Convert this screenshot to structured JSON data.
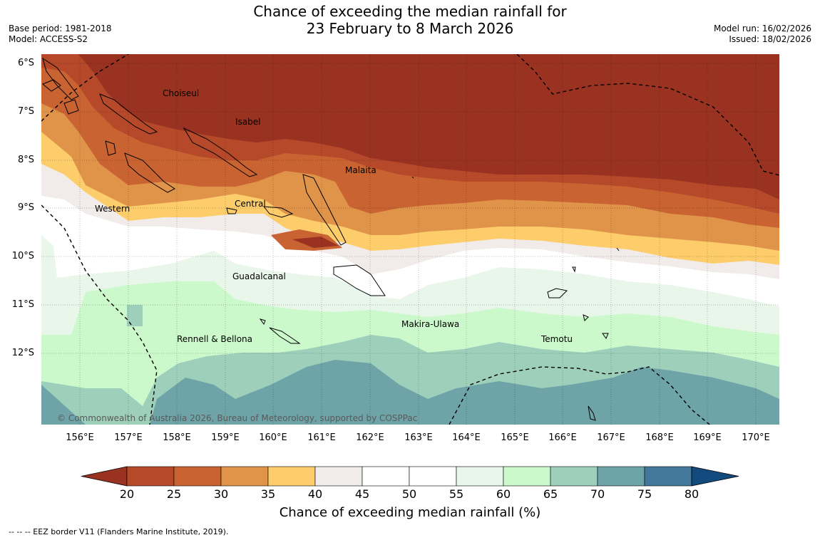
{
  "title": {
    "line1": "Chance of exceeding the median rainfall for",
    "line2": "23 February to 8 March 2026"
  },
  "left_meta": {
    "base_period": "Base period: 1981-2018",
    "model": "Model: ACCESS-S2"
  },
  "right_meta": {
    "model_run": "Model run: 16/02/2026",
    "issued": "Issued: 18/02/2026"
  },
  "map": {
    "lat_labels": [
      "6°S",
      "7°S",
      "8°S",
      "9°S",
      "10°S",
      "11°S",
      "12°S"
    ],
    "lon_labels": [
      "156°E",
      "157°E",
      "158°E",
      "159°E",
      "160°E",
      "161°E",
      "162°E",
      "163°E",
      "164°E",
      "165°E",
      "166°E",
      "167°E",
      "168°E",
      "169°E",
      "170°E"
    ],
    "regions": [
      "Choiseul",
      "Isabel",
      "Malaita",
      "Western",
      "Central",
      "Guadalcanal",
      "Makira-Ulawa",
      "Temotu",
      "Rennell & Bellona"
    ],
    "copyright": "© Commonwealth of Australia 2026, Bureau of Meteorology, supported by COSPPac"
  },
  "colorbar": {
    "ticks": [
      "20",
      "25",
      "30",
      "35",
      "40",
      "45",
      "50",
      "55",
      "60",
      "65",
      "70",
      "75",
      "80"
    ],
    "colors": [
      "#993220",
      "#b5492a",
      "#c96331",
      "#e0944a",
      "#fdcd6c",
      "#f1ecea",
      "#ffffff",
      "#ffffff",
      "#e9f6ea",
      "#ccf9cc",
      "#9dcfbb",
      "#6ea3a7",
      "#44789a",
      "#134a7e"
    ],
    "title": "Chance of exceeding median rainfall (%)"
  },
  "footnote": "-- -- -- EEZ border V11 (Flanders Marine Institute, 2019)."
}
